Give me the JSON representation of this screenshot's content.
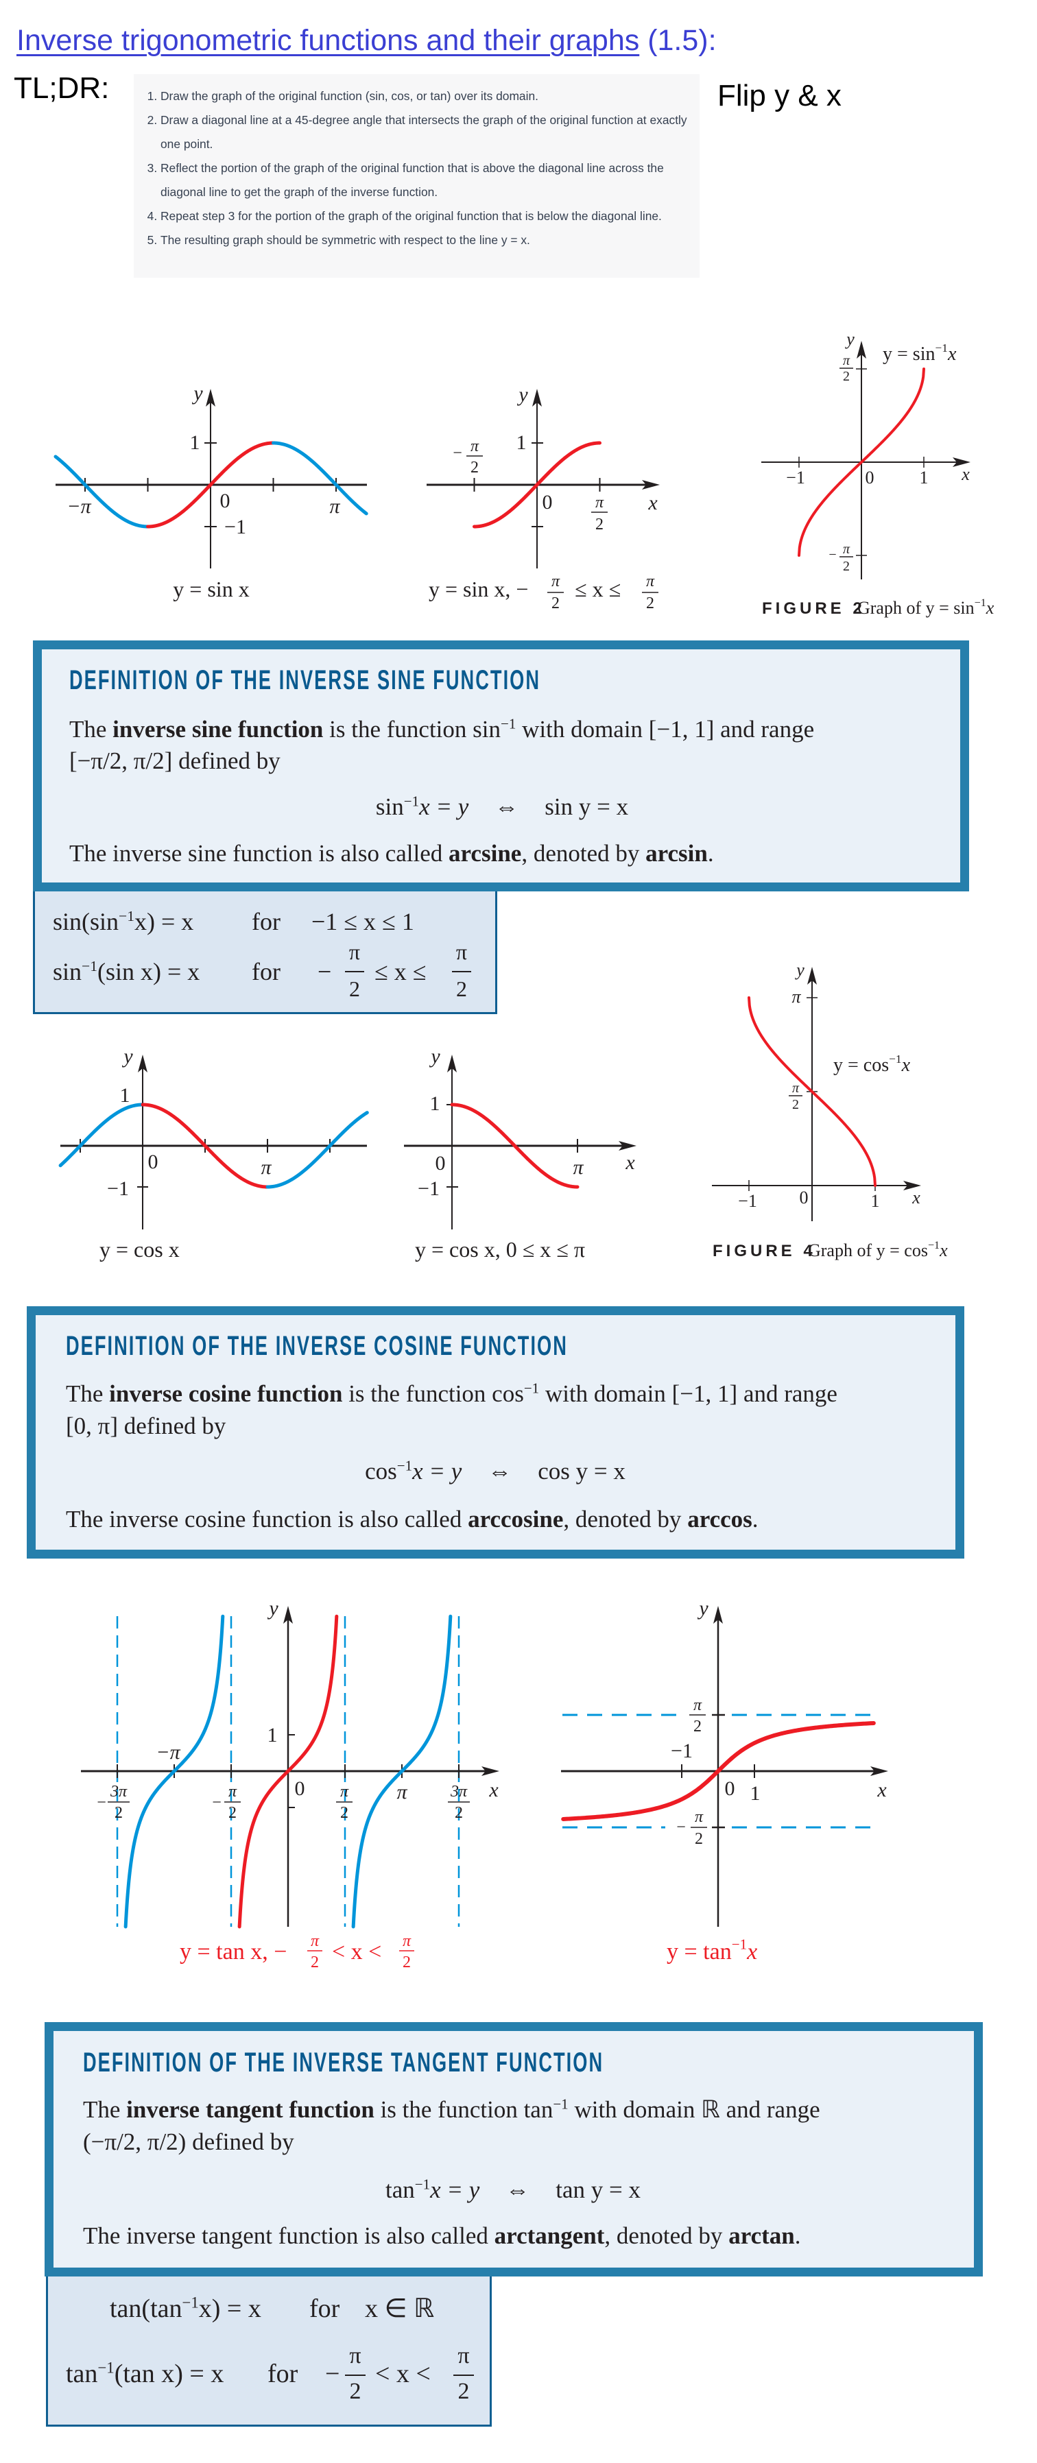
{
  "title": {
    "link": "Inverse trigonometric functions and their graphs",
    "suffix": "(1.5):"
  },
  "tldr": {
    "label": "TL;DR:",
    "steps": [
      "Draw the graph of the original function (sin, cos, or tan) over its domain.",
      "Draw a diagonal line at a 45-degree angle that intersects the graph of the original function at exactly one point.",
      "Reflect the portion of the graph of the original function that is above the diagonal line across the diagonal line to get the graph of the inverse function.",
      "Repeat step 3 for the portion of the graph of the original function that is below the diagonal line.",
      "The resulting graph should be symmetric with respect to the line y = x."
    ],
    "note": "Flip y & x"
  },
  "colors": {
    "restricted_curve": "#ed1c24",
    "extended_curve": "#0095da",
    "box_border": "#267fac",
    "heading": "#0a5a8f",
    "box_fill": "#eaf1f8",
    "identity_fill": "#dbe6f2",
    "link": "#3b3fd3"
  },
  "fig_sin": {
    "axis_y": "y",
    "tick_1": "1",
    "tick_neg1": "−1",
    "origin": "0",
    "neg_pi": "−π",
    "pi": "π",
    "caption": "y = sin x"
  },
  "fig_sin_restricted": {
    "axis_y": "y",
    "axis_x": "x",
    "tick_1": "1",
    "origin": "0",
    "minus": "−",
    "pi": "π",
    "two": "2",
    "caption_start": "y = sin x, −",
    "caption_rel": "≤ x ≤"
  },
  "fig_arcsin": {
    "axis_y": "y",
    "axis_x": "x",
    "neg1": "−1",
    "origin": "0",
    "one": "1",
    "minus": "−",
    "pi": "π",
    "two": "2",
    "curve_label": {
      "lhs": "y = sin",
      "sup": "−1",
      "var": "x"
    },
    "figure_num": "FIGURE 2",
    "figure_caption": {
      "lhs": "Graph of y = sin",
      "sup": "−1",
      "var": "x"
    }
  },
  "def_sin": {
    "heading": "DEFINITION OF THE INVERSE SINE FUNCTION",
    "intro": "The ",
    "term": "inverse sine function",
    "mid": " is the function sin",
    "sup": "−1",
    "rest": " with domain [−1, 1] and range",
    "line2": "[−π/2, π/2] defined by",
    "formula": {
      "lhs": "sin",
      "sup": "−1",
      "lhs_rest": "x = y",
      "iff": "⇔",
      "rhs": "sin y = x"
    },
    "alias": {
      "pre": "The inverse sine function is also called ",
      "name": "arcsine",
      "mid": ", denoted by ",
      "abbr": "arcsin",
      "end": "."
    }
  },
  "ident_sin": {
    "row1": {
      "lhs": "sin(sin",
      "sup": "−1",
      "lhs_rest": "x) = x",
      "for": "for",
      "cond": "−1 ≤ x ≤ 1"
    },
    "row2": {
      "lhs": "sin",
      "sup": "−1",
      "lhs_rest": "(sin x) = x",
      "for": "for",
      "minus": "−",
      "num": "π",
      "den": "2",
      "rel": "≤ x ≤",
      "num2": "π",
      "den2": "2"
    }
  },
  "fig_cos": {
    "axis_y": "y",
    "tick_1": "1",
    "tick_neg1": "−1",
    "origin": "0",
    "pi": "π",
    "caption": "y = cos x"
  },
  "fig_cos_restricted": {
    "axis_y": "y",
    "axis_x": "x",
    "tick_1": "1",
    "tick_neg1": "−1",
    "origin": "0",
    "pi": "π",
    "caption": "y = cos x,  0 ≤ x ≤ π"
  },
  "fig_arccos": {
    "axis_y": "y",
    "axis_x": "x",
    "neg1": "−1",
    "origin": "0",
    "one": "1",
    "pi": "π",
    "two": "2",
    "curve_label": {
      "lhs": "y = cos",
      "sup": "−1",
      "var": "x"
    },
    "figure_num": "FIGURE 4",
    "figure_caption": {
      "lhs": "Graph of y = cos",
      "sup": "−1",
      "var": "x"
    }
  },
  "def_cos": {
    "heading": "DEFINITION OF THE INVERSE COSINE FUNCTION",
    "intro": "The ",
    "term": "inverse cosine function",
    "mid": " is the function cos",
    "sup": "−1",
    "rest": " with domain [−1, 1] and range",
    "line2": "[0, π] defined by",
    "formula": {
      "lhs": "cos",
      "sup": "−1",
      "lhs_rest": "x = y",
      "iff": "⇔",
      "rhs": "cos y = x"
    },
    "alias": {
      "pre": "The inverse cosine function is also called ",
      "name": "arccosine",
      "mid": ", denoted by ",
      "abbr": "arccos",
      "end": "."
    }
  },
  "fig_tan": {
    "axis_y": "y",
    "axis_x": "x",
    "tick_1": "1",
    "origin": "0",
    "neg_pi": "−π",
    "pi": "π",
    "minus": "−",
    "three_pi": "3π",
    "two": "2",
    "caption_start": "y = tan x, −",
    "caption_rel": "< x <"
  },
  "fig_arctan": {
    "axis_y": "y",
    "axis_x": "x",
    "neg1": "−1",
    "origin": "0",
    "one": "1",
    "minus": "−",
    "pi": "π",
    "two": "2",
    "caption": {
      "lhs": "y = tan",
      "sup": "−1",
      "var": "x"
    }
  },
  "def_tan": {
    "heading": "DEFINITION OF THE INVERSE TANGENT FUNCTION",
    "intro": "The ",
    "term": "inverse tangent function",
    "mid": " is the function tan",
    "sup": "−1",
    "rest": " with domain ℝ and range",
    "line2": "(−π/2, π/2) defined by",
    "formula": {
      "lhs": "tan",
      "sup": "−1",
      "lhs_rest": "x = y",
      "iff": "⇔",
      "rhs": "tan y = x"
    },
    "alias": {
      "pre": "The inverse tangent function is also called ",
      "name": "arctangent",
      "mid": ", denoted by ",
      "abbr": "arctan",
      "end": "."
    }
  },
  "ident_tan": {
    "row1": {
      "lhs": "tan(tan",
      "sup": "−1",
      "lhs_rest": "x) = x",
      "for": "for",
      "cond": "x ∈ ℝ"
    },
    "row2": {
      "lhs": "tan",
      "sup": "−1",
      "lhs_rest": "(tan x) = x",
      "for": "for",
      "minus": "−",
      "num": "π",
      "den": "2",
      "rel": "< x <",
      "num2": "π",
      "den2": "2"
    }
  }
}
